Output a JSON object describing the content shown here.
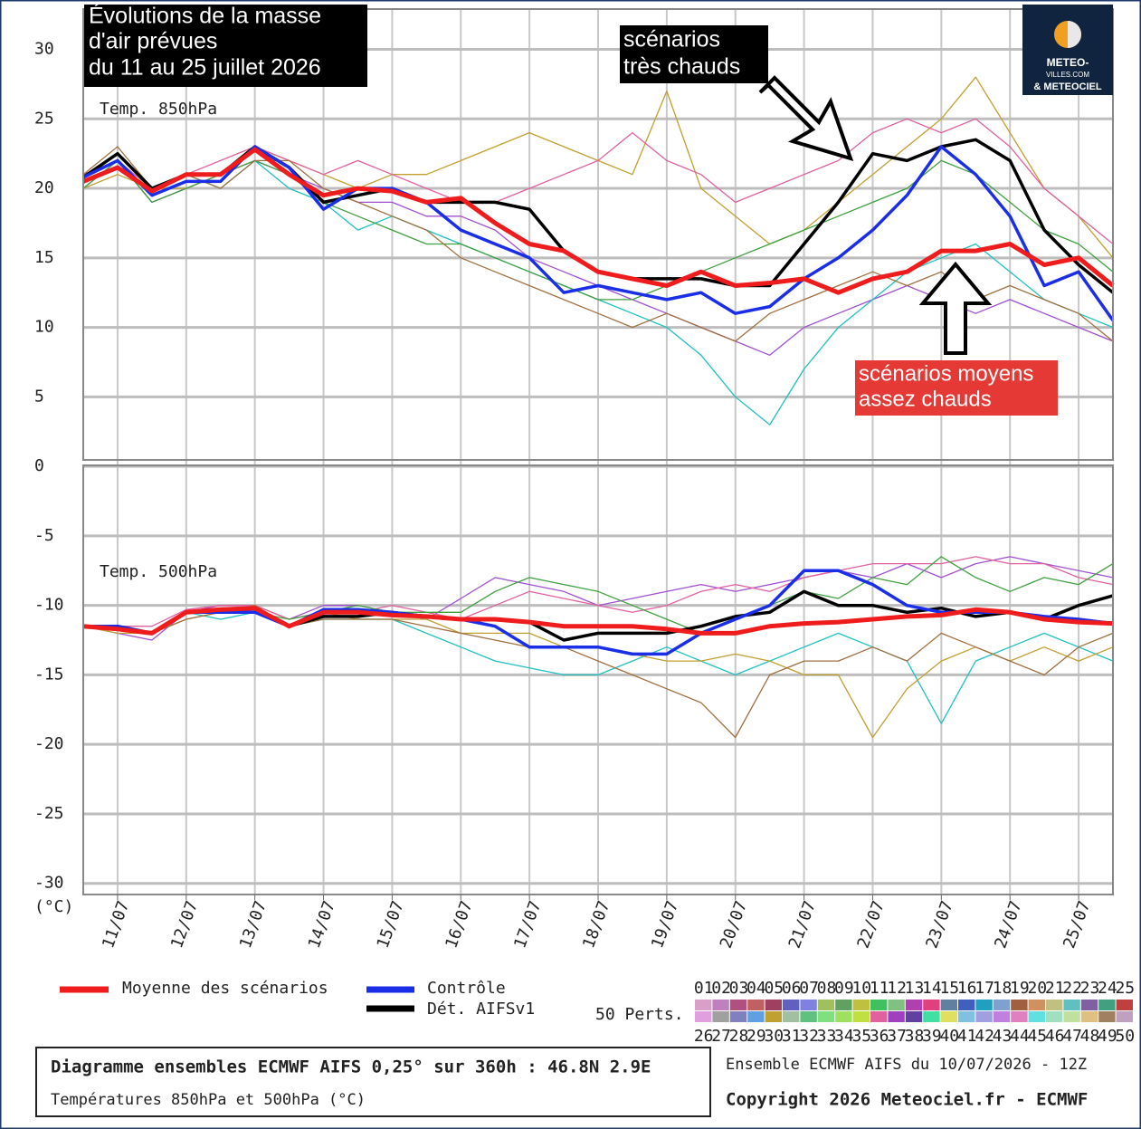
{
  "chart_data": {
    "type": "line",
    "title_lines": [
      "Évolutions de la masse",
      "d'air prévues",
      "du 11 au 25 juillet 2026"
    ],
    "y_unit": "(°C)",
    "panel_labels": [
      "Temp. 850hPa",
      "Temp. 500hPa"
    ],
    "x": [
      10.5,
      11,
      11.5,
      12,
      12.5,
      13,
      13.5,
      14,
      14.5,
      15,
      15.5,
      16,
      16.5,
      17,
      17.5,
      18,
      18.5,
      19,
      19.5,
      20,
      20.5,
      21,
      21.5,
      22,
      22.5,
      23,
      23.5,
      24,
      24.5,
      25,
      25.5
    ],
    "xlim": [
      10.5,
      25.5
    ],
    "xticks": [
      {
        "value": 11,
        "label": "11/07"
      },
      {
        "value": 12,
        "label": "12/07"
      },
      {
        "value": 13,
        "label": "13/07"
      },
      {
        "value": 14,
        "label": "14/07"
      },
      {
        "value": 15,
        "label": "15/07"
      },
      {
        "value": 16,
        "label": "16/07"
      },
      {
        "value": 17,
        "label": "17/07"
      },
      {
        "value": 18,
        "label": "18/07"
      },
      {
        "value": 19,
        "label": "19/07"
      },
      {
        "value": 20,
        "label": "20/07"
      },
      {
        "value": 21,
        "label": "21/07"
      },
      {
        "value": 22,
        "label": "22/07"
      },
      {
        "value": 23,
        "label": "23/07"
      },
      {
        "value": 24,
        "label": "24/07"
      },
      {
        "value": 25,
        "label": "25/07"
      }
    ],
    "ylim": [
      -30.8,
      32.9
    ],
    "yticks": [
      30,
      25,
      20,
      15,
      10,
      5,
      0,
      -5,
      -10,
      -15,
      -20,
      -25,
      -30
    ],
    "grid": true,
    "series": [
      {
        "name": "Moyenne des scénarios",
        "color": "#ee1c1c",
        "values_850": [
          20.5,
          21.5,
          19.8,
          21,
          21,
          22.8,
          21,
          19.5,
          20,
          19.8,
          19,
          19.3,
          17.5,
          16,
          15.5,
          14,
          13.5,
          13,
          14,
          13,
          13.2,
          13.5,
          12.5,
          13.5,
          14,
          15.5,
          15.5,
          16,
          14.5,
          15,
          13
        ],
        "values_500": [
          -11.5,
          -11.7,
          -12,
          -10.5,
          -10.3,
          -10.2,
          -11.5,
          -10.5,
          -10.5,
          -10.7,
          -10.8,
          -11,
          -11,
          -11.2,
          -11.5,
          -11.5,
          -11.5,
          -11.7,
          -12,
          -12,
          -11.5,
          -11.3,
          -11.2,
          -11,
          -10.8,
          -10.7,
          -10.3,
          -10.5,
          -11,
          -11.2,
          -11.3
        ]
      },
      {
        "name": "Contrôle",
        "color": "#1a2ee8",
        "values_850": [
          20.8,
          22,
          19.5,
          20.5,
          20.5,
          23,
          21.5,
          18.5,
          20,
          20,
          19,
          17,
          16,
          15,
          12.5,
          13,
          12.5,
          12,
          12.5,
          11,
          11.5,
          13.5,
          15,
          17,
          19.5,
          23,
          21,
          18,
          13,
          14,
          10.5
        ],
        "values_500": [
          -11.5,
          -11.5,
          -12,
          -10.5,
          -10.5,
          -10.5,
          -11.5,
          -10.3,
          -10.3,
          -10.5,
          -10.8,
          -11,
          -11.5,
          -13,
          -13,
          -13,
          -13.5,
          -13.5,
          -12,
          -11,
          -10,
          -7.5,
          -7.5,
          -8.5,
          -10,
          -10.5,
          -10.5,
          -10.5,
          -10.8,
          -11,
          -11.3
        ]
      },
      {
        "name": "Dét. AIFSv1",
        "color": "#000000",
        "values_850": [
          20.8,
          22.5,
          20,
          21,
          21,
          23,
          21.5,
          19,
          19.5,
          20,
          19,
          19,
          19,
          18.5,
          15.5,
          14,
          13.5,
          13.5,
          13.5,
          13,
          13,
          16,
          19,
          22.5,
          22,
          23,
          23.5,
          22,
          17,
          14.5,
          12.5
        ],
        "values_500": [
          -11.5,
          -11.5,
          -12,
          -10.5,
          -10.3,
          -10.2,
          -11.5,
          -10.8,
          -10.8,
          -10.5,
          -10.8,
          -11,
          -11,
          -11.2,
          -12.5,
          -12,
          -12,
          -12,
          -11.5,
          -10.8,
          -10.5,
          -9,
          -10,
          -10,
          -10.5,
          -10.2,
          -10.8,
          -10.5,
          -11,
          -10,
          -9.3
        ]
      }
    ],
    "perturbations": {
      "label": "50 Perts.",
      "names": [
        "01",
        "02",
        "03",
        "04",
        "05",
        "06",
        "07",
        "08",
        "09",
        "10",
        "11",
        "12",
        "13",
        "14",
        "15",
        "16",
        "17",
        "18",
        "19",
        "20",
        "21",
        "22",
        "23",
        "24",
        "25",
        "26",
        "27",
        "28",
        "29",
        "30",
        "31",
        "32",
        "33",
        "34",
        "35",
        "36",
        "37",
        "38",
        "39",
        "40",
        "41",
        "42",
        "43",
        "44",
        "45",
        "46",
        "47",
        "48",
        "49",
        "50"
      ],
      "colors": [
        "#d8a0c8",
        "#c080c0",
        "#b05080",
        "#c06060",
        "#a04060",
        "#6060c0",
        "#8080e0",
        "#a0c060",
        "#60a060",
        "#c0c040",
        "#40c060",
        "#80c080",
        "#b040b0",
        "#e04080",
        "#6080a0",
        "#4060c0",
        "#20a0c0",
        "#80a0d0",
        "#a06040",
        "#d09060",
        "#c0c080",
        "#60c0c0",
        "#8060a0",
        "#40a080",
        "#c04040",
        "#e0a0e0",
        "#a0a0a0",
        "#8080c0",
        "#60a0e0",
        "#c0a030",
        "#a0c0a0",
        "#60c080",
        "#80e080",
        "#a0e060",
        "#c0e040",
        "#e060a0",
        "#a040c0",
        "#6040a0",
        "#40e0a0",
        "#e0e060",
        "#80c0e0",
        "#a0a0e0",
        "#c080e0",
        "#e080c0",
        "#60e0e0",
        "#a0e0c0",
        "#c0e0a0",
        "#e0c080",
        "#a08060",
        "#c0a0c0"
      ],
      "samples": [
        {
          "color": "#a050d0",
          "values_850": [
            20,
            22,
            19,
            20,
            21,
            22,
            21,
            20,
            19,
            19,
            18,
            18,
            17,
            15,
            14,
            13,
            12,
            11,
            10,
            9,
            8,
            10,
            11,
            12,
            13,
            12,
            11,
            12,
            11,
            10,
            9
          ],
          "values_500": [
            -11.5,
            -12,
            -12.5,
            -10.5,
            -10,
            -10,
            -11,
            -10,
            -10,
            -10.5,
            -11,
            -9.5,
            -8,
            -8.5,
            -9,
            -10,
            -9.5,
            -9,
            -8.5,
            -9,
            -8.5,
            -8,
            -7.5,
            -8,
            -7,
            -8,
            -7,
            -6.5,
            -7,
            -7.5,
            -8
          ]
        },
        {
          "color": "#20c0c0",
          "values_850": [
            21,
            22,
            20,
            21,
            20,
            22,
            20,
            19,
            17,
            18,
            17,
            16,
            15,
            14,
            13,
            12,
            11,
            10,
            8,
            5,
            3,
            7,
            10,
            12,
            14,
            15,
            16,
            14,
            12,
            11,
            10
          ],
          "values_500": [
            -11.5,
            -11.5,
            -12,
            -10.5,
            -11,
            -10.5,
            -11.5,
            -11,
            -11,
            -11,
            -12,
            -13,
            -14,
            -14.5,
            -15,
            -15,
            -14,
            -13,
            -14,
            -15,
            -14,
            -13,
            -12,
            -13,
            -14,
            -18.5,
            -14,
            -13,
            -12,
            -13,
            -14
          ]
        },
        {
          "color": "#c0a030",
          "values_850": [
            20,
            21,
            20,
            20,
            21,
            23,
            22,
            21,
            20,
            21,
            21,
            22,
            23,
            24,
            23,
            22,
            21,
            27,
            20,
            18,
            16,
            17,
            19,
            21,
            23,
            25,
            28,
            24,
            20,
            18,
            15
          ],
          "values_500": [
            -11.5,
            -12,
            -12,
            -11,
            -10.5,
            -10,
            -11,
            -10.5,
            -11,
            -11,
            -11,
            -12,
            -12,
            -12,
            -13,
            -13,
            -13.5,
            -14,
            -14,
            -13.5,
            -14,
            -15,
            -15,
            -19.5,
            -16,
            -14,
            -13,
            -14,
            -13,
            -14,
            -13
          ]
        },
        {
          "color": "#e060a0",
          "values_850": [
            21,
            22,
            20,
            21,
            22,
            23,
            22,
            21,
            22,
            21,
            20,
            19,
            19,
            20,
            21,
            22,
            24,
            22,
            21,
            19,
            20,
            21,
            22,
            24,
            25,
            24,
            25,
            23,
            20,
            18,
            16
          ],
          "values_500": [
            -11.5,
            -11.5,
            -11.5,
            -10.3,
            -10,
            -10,
            -11,
            -10.5,
            -10.5,
            -10,
            -10.5,
            -11,
            -10,
            -9,
            -9.5,
            -10,
            -10.5,
            -10,
            -9,
            -8.5,
            -9,
            -8,
            -7.5,
            -7,
            -7,
            -7,
            -6.5,
            -7,
            -7,
            -8,
            -8.5
          ]
        },
        {
          "color": "#40a040",
          "values_850": [
            20,
            22,
            19,
            20,
            21,
            22,
            21,
            19,
            18,
            17,
            16,
            16,
            15,
            14,
            13,
            12,
            12,
            13,
            14,
            15,
            16,
            17,
            18,
            19,
            20,
            22,
            21,
            19,
            17,
            16,
            14
          ],
          "values_500": [
            -11.5,
            -11.5,
            -12,
            -10.5,
            -10.5,
            -10.5,
            -11,
            -10.5,
            -10,
            -10.5,
            -10.5,
            -10.5,
            -9,
            -8,
            -8.5,
            -9,
            -10,
            -11,
            -12,
            -11,
            -10,
            -9,
            -9.5,
            -8,
            -8.5,
            -6.5,
            -8,
            -9,
            -8,
            -8.5,
            -7
          ]
        },
        {
          "color": "#a07040",
          "values_850": [
            21,
            23,
            20,
            21,
            20,
            22,
            22,
            20,
            19,
            18,
            17,
            15,
            14,
            13,
            12,
            11,
            10,
            11,
            10,
            9,
            11,
            12,
            13,
            14,
            13,
            14,
            12,
            13,
            12,
            11,
            9
          ],
          "values_500": [
            -11.5,
            -11.7,
            -12,
            -11,
            -10.5,
            -10,
            -11.5,
            -11,
            -11,
            -11,
            -11.5,
            -12,
            -12.5,
            -13,
            -13,
            -14,
            -15,
            -16,
            -17,
            -19.5,
            -15,
            -14,
            -14,
            -13,
            -14,
            -12,
            -13,
            -14,
            -15,
            -13,
            -12
          ]
        }
      ]
    },
    "annotations": {
      "hot": [
        "scénarios",
        "très chauds"
      ],
      "mean": [
        "scénarios moyens",
        "assez chauds"
      ]
    },
    "logo": [
      "METEO-",
      "VILLES.COM",
      "& METEOCIEL"
    ],
    "footer": {
      "main": "Diagramme ensembles ECMWF AIFS 0,25° sur 360h : 46.8N 2.9E",
      "sub": "Températures 850hPa et 500hPa (°C)",
      "run": "Ensemble ECMWF AIFS du 10/07/2026 - 12Z",
      "copyright": "Copyright 2026 Meteociel.fr - ECMWF"
    }
  }
}
